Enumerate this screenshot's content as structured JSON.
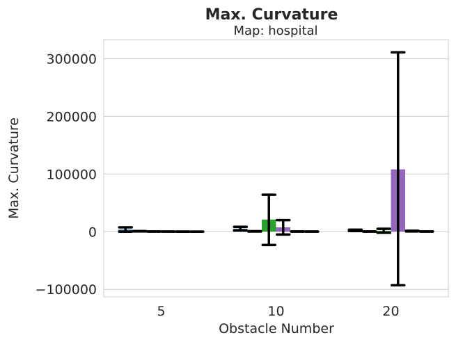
{
  "chart_data": {
    "type": "bar",
    "title": "Max. Curvature",
    "subtitle": "Map: hospital",
    "xlabel": "Obstacle Number",
    "ylabel": "Max. Curvature",
    "categories": [
      "5",
      "10",
      "20"
    ],
    "ylim": [
      -113000,
      333000
    ],
    "yticks": [
      -100000,
      0,
      100000,
      200000,
      300000
    ],
    "ytick_labels": [
      "−100000",
      "0",
      "100000",
      "200000",
      "300000"
    ],
    "grid": true,
    "legend": "none",
    "series": [
      {
        "color": "#1f77b4",
        "values": [
          3500,
          5000,
          2500
        ],
        "err_low": [
          0,
          2000,
          1000
        ],
        "err_high": [
          7500,
          8500,
          3500
        ]
      },
      {
        "color": "#ff7f0e",
        "values": [
          800,
          600,
          300
        ],
        "err_low": [
          500,
          300,
          100
        ],
        "err_high": [
          1100,
          900,
          500
        ]
      },
      {
        "color": "#2ca02c",
        "values": [
          300,
          21000,
          1500
        ],
        "err_low": [
          100,
          -23000,
          -2000
        ],
        "err_high": [
          500,
          64000,
          5000
        ]
      },
      {
        "color": "#9467bd",
        "values": [
          200,
          7500,
          108000
        ],
        "err_low": [
          100,
          -5000,
          -93000
        ],
        "err_high": [
          300,
          20000,
          311000
        ]
      },
      {
        "color": "#8c564b",
        "values": [
          150,
          300,
          1000
        ],
        "err_low": [
          50,
          100,
          500
        ],
        "err_high": [
          250,
          500,
          1500
        ]
      },
      {
        "color": "#e377c2",
        "values": [
          100,
          200,
          300
        ],
        "err_low": [
          50,
          100,
          100
        ],
        "err_high": [
          150,
          300,
          500
        ]
      }
    ]
  }
}
